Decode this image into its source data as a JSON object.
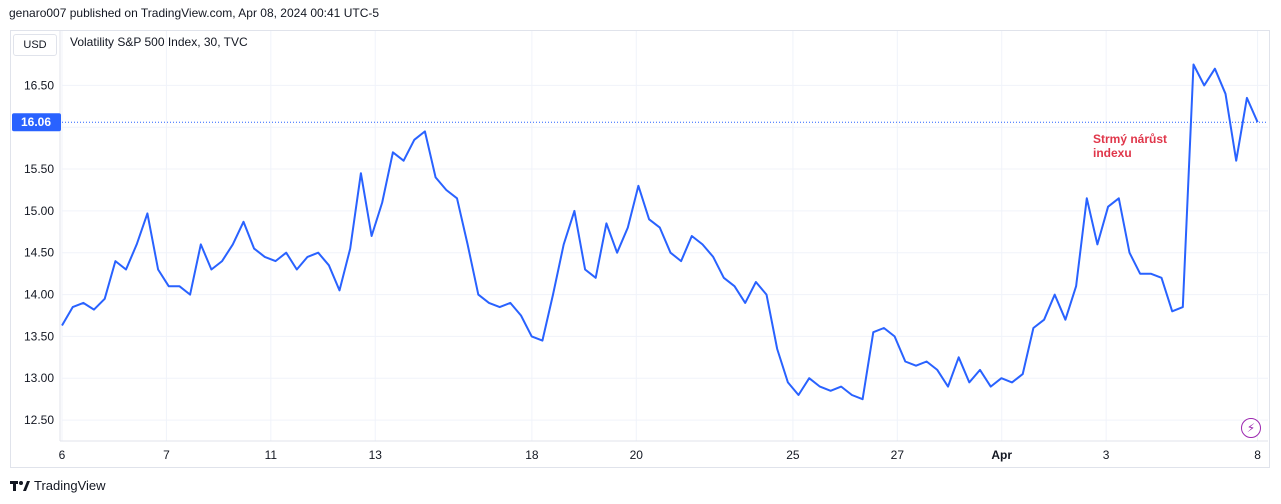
{
  "header": {
    "published": "genaro007 published on TradingView.com, Apr 08, 2024 00:41 UTC-5"
  },
  "toolbar": {
    "currency": "USD"
  },
  "legend": {
    "symbol": "Volatility S&P 500 Index, 30, TVC"
  },
  "annotation": {
    "line1": "Strmý nárůst",
    "line2": "indexu"
  },
  "footer": {
    "brand": "TradingView"
  },
  "icons": {
    "bolt": "lightning-bolt-icon",
    "logo": "tradingview-logo-icon"
  },
  "colors": {
    "line": "#2962ff",
    "price_label": "#2962ff",
    "annotation": "#e0364a",
    "grid": "#f0f3fa"
  },
  "chart_data": {
    "type": "line",
    "title": "Volatility S&P 500 Index, 30, TVC",
    "ylim": [
      12.25,
      17.15
    ],
    "y_ticks": [
      12.5,
      13.0,
      13.5,
      14.0,
      14.5,
      15.0,
      15.5,
      16.0,
      16.5
    ],
    "y_tick_labels": [
      "12.50",
      "13.00",
      "13.50",
      "14.00",
      "14.50",
      "15.00",
      "15.50",
      "16.00",
      "16.50"
    ],
    "x_ticks": [
      {
        "label": "6",
        "t": 0
      },
      {
        "label": "7",
        "t": 1
      },
      {
        "label": "11",
        "t": 2
      },
      {
        "label": "13",
        "t": 3
      },
      {
        "label": "18",
        "t": 4.5
      },
      {
        "label": "20",
        "t": 5.5
      },
      {
        "label": "25",
        "t": 7
      },
      {
        "label": "27",
        "t": 8
      },
      {
        "label": "Apr",
        "t": 9
      },
      {
        "label": "3",
        "t": 10
      },
      {
        "label": "8",
        "t": 11.45
      }
    ],
    "x_range": [
      0,
      11.55
    ],
    "last_price": 16.06,
    "last_price_label": "16.06",
    "series": [
      {
        "values": [
          13.63,
          13.85,
          13.9,
          13.82,
          13.95,
          14.4,
          14.3,
          14.6,
          14.97,
          14.3,
          14.1,
          14.1,
          14.0,
          14.6,
          14.3,
          14.4,
          14.6,
          14.87,
          14.55,
          14.45,
          14.4,
          14.5,
          14.3,
          14.45,
          14.5,
          14.35,
          14.05,
          14.55,
          15.45,
          14.7,
          15.1,
          15.7,
          15.6,
          15.85,
          15.95,
          15.4,
          15.25,
          15.15,
          14.6,
          14.0,
          13.9,
          13.85,
          13.9,
          13.75,
          13.5,
          13.45,
          14.0,
          14.6,
          15.0,
          14.3,
          14.2,
          14.85,
          14.5,
          14.8,
          15.3,
          14.9,
          14.8,
          14.5,
          14.4,
          14.7,
          14.6,
          14.45,
          14.2,
          14.1,
          13.9,
          14.15,
          14.0,
          13.35,
          12.95,
          12.8,
          13.0,
          12.9,
          12.85,
          12.9,
          12.8,
          12.75,
          13.55,
          13.6,
          13.5,
          13.2,
          13.15,
          13.2,
          13.1,
          12.9,
          13.25,
          12.95,
          13.1,
          12.9,
          13.0,
          12.95,
          13.05,
          13.6,
          13.7,
          14.0,
          13.7,
          14.1,
          15.15,
          14.6,
          15.05,
          15.15,
          14.5,
          14.25,
          14.25,
          14.2,
          13.8,
          13.85,
          16.75,
          16.5,
          16.7,
          16.4,
          15.6,
          16.35,
          16.06
        ]
      }
    ]
  }
}
